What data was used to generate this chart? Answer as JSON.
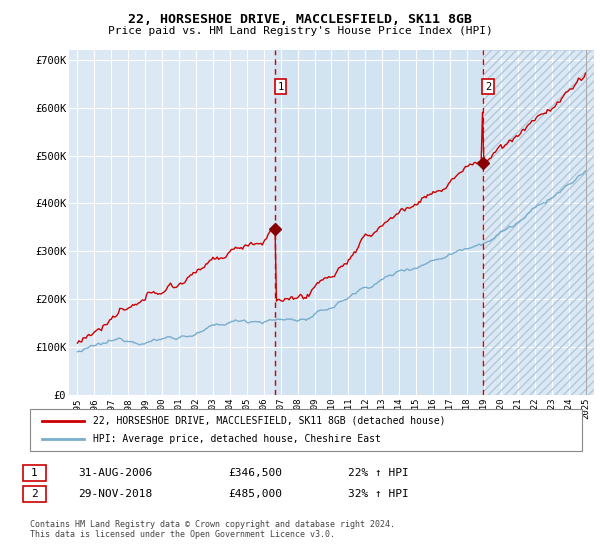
{
  "title_line1": "22, HORSESHOE DRIVE, MACCLESFIELD, SK11 8GB",
  "title_line2": "Price paid vs. HM Land Registry's House Price Index (HPI)",
  "background_color": "#dce9f5",
  "grid_color": "#ffffff",
  "red_color": "#cc0000",
  "blue_color": "#7aadcc",
  "ylim": [
    0,
    720000
  ],
  "yticks": [
    0,
    100000,
    200000,
    300000,
    400000,
    500000,
    600000,
    700000
  ],
  "ytick_labels": [
    "£0",
    "£100K",
    "£200K",
    "£300K",
    "£400K",
    "£500K",
    "£600K",
    "£700K"
  ],
  "x_start_year": 1995,
  "x_end_year": 2025,
  "purchase1_date": 2006.667,
  "purchase1_price": 346500,
  "purchase1_label": "1",
  "purchase2_date": 2018.917,
  "purchase2_price": 485000,
  "purchase2_label": "2",
  "legend_entry1": "22, HORSESHOE DRIVE, MACCLESFIELD, SK11 8GB (detached house)",
  "legend_entry2": "HPI: Average price, detached house, Cheshire East",
  "table_row1": [
    "1",
    "31-AUG-2006",
    "£346,500",
    "22% ↑ HPI"
  ],
  "table_row2": [
    "2",
    "29-NOV-2018",
    "£485,000",
    "32% ↑ HPI"
  ],
  "footnote": "Contains HM Land Registry data © Crown copyright and database right 2024.\nThis data is licensed under the Open Government Licence v3.0."
}
